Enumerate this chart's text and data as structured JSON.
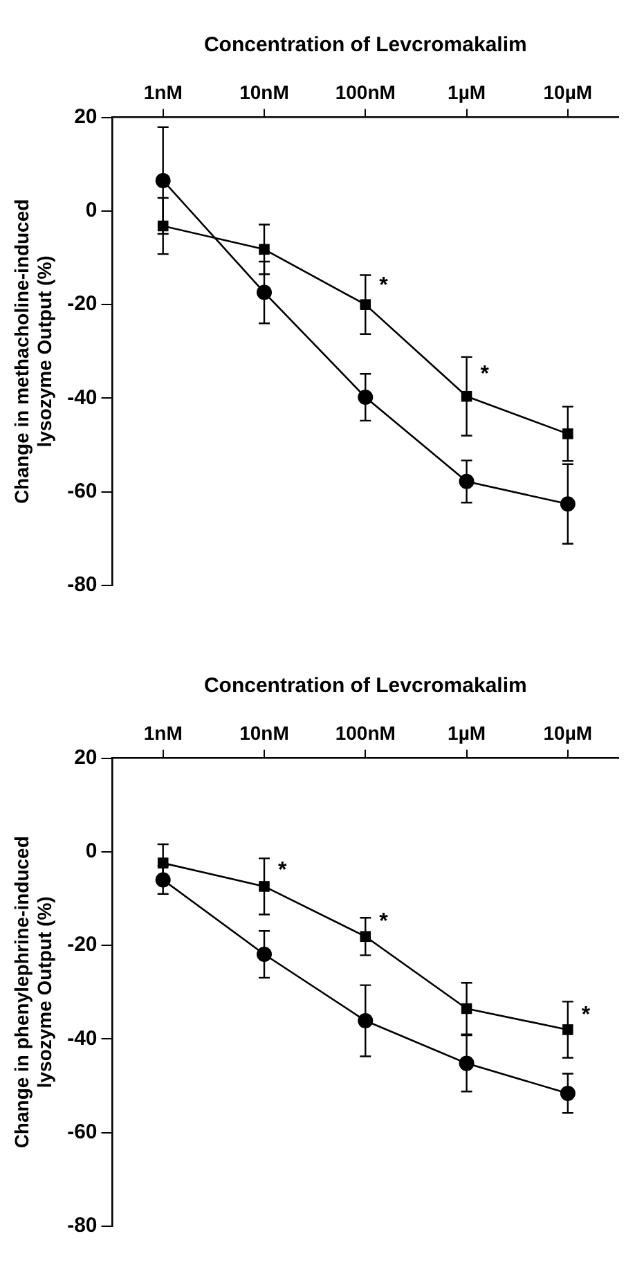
{
  "chart_data": [
    {
      "type": "line",
      "xlabel": "Concentration of Levcromakalim",
      "ylabel": "Change in methacholine-induced\nlysozyme Output (%)",
      "categories": [
        "1nM",
        "10nM",
        "100nM",
        "1µM",
        "10µM"
      ],
      "ylim": [
        -80,
        20
      ],
      "yticks": [
        -80,
        -60,
        -40,
        -20,
        0,
        20
      ],
      "grid": false,
      "legend": false,
      "series": [
        {
          "color": "#000000",
          "marker": "circle",
          "values": [
            6.5,
            -17.4,
            -39.8,
            -57.8,
            -62.6
          ],
          "errors": [
            11.4,
            6.6,
            5,
            4.5,
            8.5
          ]
        },
        {
          "color": "#000000",
          "marker": "square",
          "values": [
            -3.2,
            -8.2,
            -20,
            -39.6,
            -47.6
          ],
          "errors": [
            6,
            5.3,
            6.3,
            8.4,
            5.8
          ]
        }
      ],
      "annotations": [
        {
          "text": "*",
          "x": "100nM",
          "y": -16
        },
        {
          "text": "*",
          "x": "1µM",
          "y": -35
        }
      ]
    },
    {
      "type": "line",
      "xlabel": "Concentration of Levcromakalim",
      "ylabel": "Change in phenylephrine-induced\nlysozyme Output (%)",
      "categories": [
        "1nM",
        "10nM",
        "100nM",
        "1µM",
        "10µM"
      ],
      "ylim": [
        -80,
        20
      ],
      "yticks": [
        -80,
        -60,
        -40,
        -20,
        0,
        20
      ],
      "grid": false,
      "legend": false,
      "series": [
        {
          "color": "#000000",
          "marker": "circle",
          "values": [
            -6,
            -21.9,
            -36.1,
            -45.2,
            -51.6
          ],
          "errors": [
            3,
            5,
            7.6,
            6,
            4.2
          ]
        },
        {
          "color": "#000000",
          "marker": "square",
          "values": [
            -2.4,
            -7.4,
            -18.1,
            -33.5,
            -38
          ],
          "errors": [
            4,
            6,
            4,
            5.5,
            6
          ]
        }
      ],
      "annotations": [
        {
          "text": "*",
          "x": "10nM",
          "y": -4
        },
        {
          "text": "*",
          "x": "100nM",
          "y": -15
        },
        {
          "text": "*",
          "x": "10µM",
          "y": -35
        }
      ]
    }
  ]
}
